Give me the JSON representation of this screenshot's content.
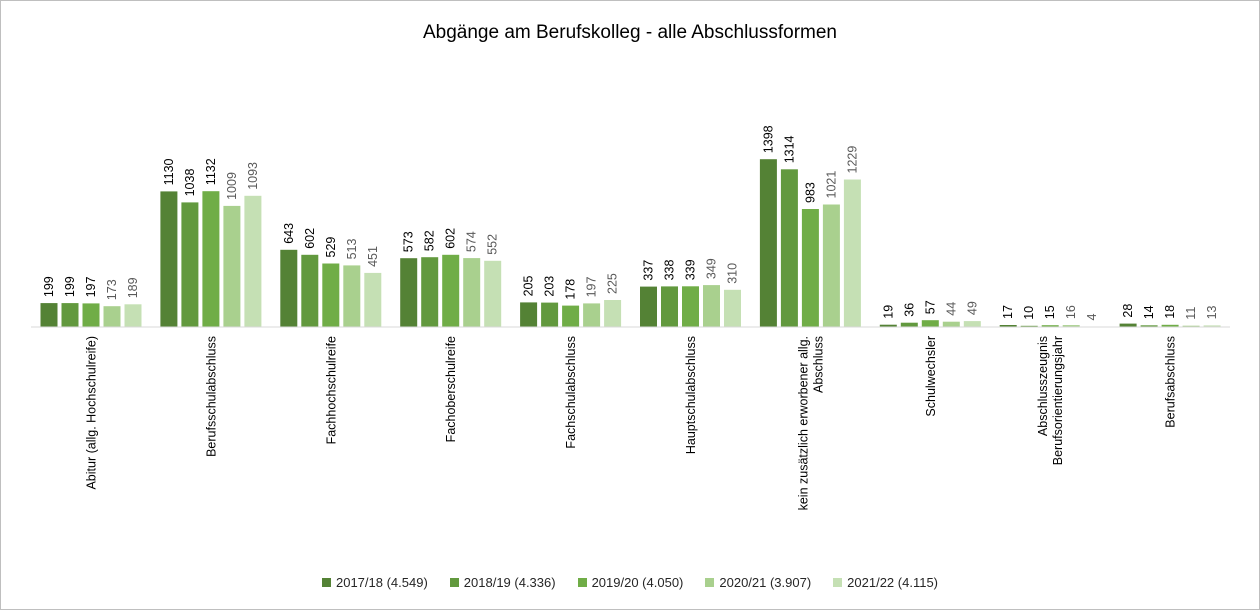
{
  "chart_data": {
    "type": "bar",
    "title": "Abgänge am Berufskolleg - alle Abschlussformen",
    "xlabel": "",
    "ylabel": "",
    "ylim": [
      0,
      1600
    ],
    "grid": false,
    "legend_position": "bottom",
    "categories": [
      [
        "Abitur (allg. Hochschulreife)"
      ],
      [
        "Berufsschulabschluss"
      ],
      [
        "Fachhochschulreife"
      ],
      [
        "Fachoberschulreife"
      ],
      [
        "Fachschulabschluss"
      ],
      [
        "Hauptschulabschluss"
      ],
      [
        "kein zusätzlich erworbener allg.",
        "Abschluss"
      ],
      [
        "Schulwechsler"
      ],
      [
        "Abschlusszeugnis",
        "Berufsorientierungsjahr"
      ],
      [
        "Berufsabschluss"
      ]
    ],
    "series": [
      {
        "name": "2017/18 (4.549)",
        "color": "#548235",
        "label_color": "#000000",
        "values": [
          199,
          1130,
          643,
          573,
          205,
          337,
          1398,
          19,
          17,
          28
        ]
      },
      {
        "name": "2018/19 (4.336)",
        "color": "#62993e",
        "label_color": "#000000",
        "values": [
          199,
          1038,
          602,
          582,
          203,
          338,
          1314,
          36,
          10,
          14
        ]
      },
      {
        "name": "2019/20 (4.050)",
        "color": "#70ad47",
        "label_color": "#000000",
        "values": [
          197,
          1132,
          529,
          602,
          178,
          339,
          983,
          57,
          15,
          18
        ]
      },
      {
        "name": "2020/21 (3.907)",
        "color": "#a9d08e",
        "label_color": "#595959",
        "values": [
          173,
          1009,
          513,
          574,
          197,
          349,
          1021,
          44,
          16,
          11
        ]
      },
      {
        "name": "2021/22 (4.115)",
        "color": "#c5e0b4",
        "label_color": "#595959",
        "values": [
          189,
          1093,
          451,
          552,
          225,
          310,
          1229,
          49,
          4,
          13
        ]
      }
    ]
  }
}
